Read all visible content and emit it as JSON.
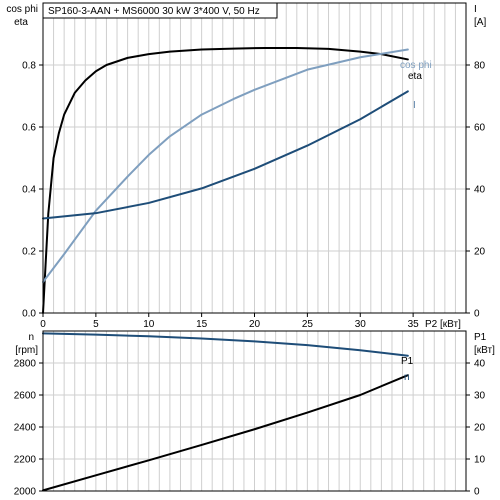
{
  "chart_data": [
    {
      "type": "line",
      "title": "SP160-3-AAN + MS6000   30 kW   3*400 V, 50 Hz",
      "xlabel": "P2 [кВт]",
      "x_ticks": [
        "0",
        "5",
        "10",
        "15",
        "20",
        "25",
        "30",
        "35"
      ],
      "xlim": [
        0,
        40
      ],
      "left_axis": {
        "label_top": "cos phi",
        "label_bottom": "eta",
        "ylim": [
          0,
          1.0
        ],
        "ticks": [
          "0.0",
          "0.2",
          "0.4",
          "0.6",
          "0.8"
        ]
      },
      "right_axis": {
        "label_top": "I",
        "label_bottom": "[A]",
        "ylim": [
          0,
          100
        ],
        "ticks": [
          "0",
          "20",
          "40",
          "60",
          "80"
        ]
      },
      "grid": true,
      "series": [
        {
          "name": "eta",
          "axis": "left",
          "color": "#000000",
          "x": [
            0,
            0.5,
            1,
            1.5,
            2,
            3,
            4,
            5,
            6,
            8,
            10,
            12,
            15,
            18,
            21,
            24,
            27,
            30,
            32,
            34.5
          ],
          "y": [
            0,
            0.32,
            0.5,
            0.58,
            0.64,
            0.71,
            0.75,
            0.78,
            0.8,
            0.823,
            0.835,
            0.843,
            0.85,
            0.853,
            0.855,
            0.855,
            0.852,
            0.843,
            0.835,
            0.818
          ]
        },
        {
          "name": "cos phi",
          "axis": "left",
          "color": "#7f9fbf",
          "x": [
            0,
            2,
            5,
            8,
            10,
            12,
            15,
            18,
            20,
            25,
            30,
            34.5
          ],
          "y": [
            0.1,
            0.19,
            0.33,
            0.44,
            0.51,
            0.57,
            0.64,
            0.69,
            0.72,
            0.785,
            0.825,
            0.85
          ]
        },
        {
          "name": "I",
          "axis": "right",
          "color": "#1e4d78",
          "x": [
            0,
            5,
            10,
            15,
            20,
            25,
            30,
            34.5
          ],
          "y": [
            30.5,
            32.2,
            35.5,
            40.2,
            46.5,
            54,
            62.5,
            71.5
          ]
        }
      ]
    },
    {
      "type": "line",
      "xlim": [
        0,
        40
      ],
      "left_axis": {
        "label_top": "n",
        "label_bottom": "[rpm]",
        "ylim": [
          2000,
          3000
        ],
        "ticks": [
          "2000",
          "2200",
          "2400",
          "2600",
          "2800"
        ]
      },
      "right_axis": {
        "label_top": "P1",
        "label_bottom": "[кВт]",
        "ylim": [
          0,
          50
        ],
        "ticks": [
          "0",
          "10",
          "20",
          "30",
          "40"
        ]
      },
      "grid": true,
      "series": [
        {
          "name": "n",
          "axis": "left",
          "color": "#1e4d78",
          "x": [
            0,
            5,
            10,
            15,
            20,
            25,
            30,
            34.5
          ],
          "y": [
            2985,
            2977,
            2967,
            2953,
            2935,
            2912,
            2880,
            2845
          ]
        },
        {
          "name": "P1",
          "axis": "right",
          "color": "#000000",
          "x": [
            0,
            5,
            10,
            15,
            20,
            25,
            30,
            34.5
          ],
          "y": [
            0.2,
            4.9,
            9.6,
            14.4,
            19.3,
            24.5,
            30.0,
            36.2
          ]
        }
      ]
    }
  ]
}
